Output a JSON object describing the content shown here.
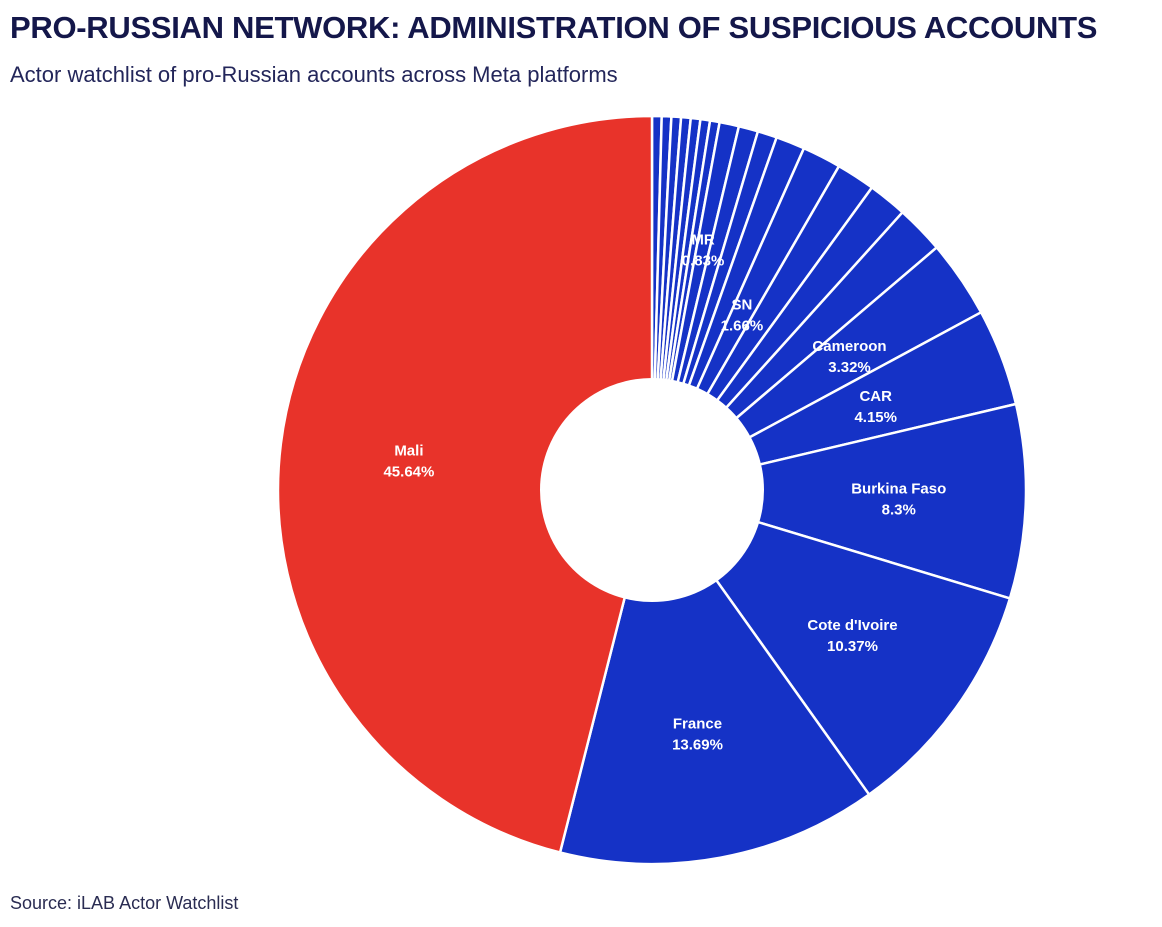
{
  "title": "PRO-RUSSIAN NETWORK: ADMINISTRATION OF SUSPICIOUS ACCOUNTS",
  "subtitle": "Actor watchlist of pro-Russian accounts across Meta platforms",
  "source": "Source: iLAB Actor Watchlist",
  "colors": {
    "highlight": "#e8332a",
    "base": "#1532c6",
    "separator": "#ffffff"
  },
  "chart_data": {
    "type": "pie",
    "donut": true,
    "start_direction": "12 o'clock, clockwise",
    "unit": "%",
    "slices": [
      {
        "label": "",
        "value": 0.41,
        "color": "#1532c6"
      },
      {
        "label": "",
        "value": 0.41,
        "color": "#1532c6"
      },
      {
        "label": "",
        "value": 0.41,
        "color": "#1532c6"
      },
      {
        "label": "",
        "value": 0.41,
        "color": "#1532c6"
      },
      {
        "label": "",
        "value": 0.41,
        "color": "#1532c6"
      },
      {
        "label": "",
        "value": 0.41,
        "color": "#1532c6"
      },
      {
        "label": "",
        "value": 0.41,
        "color": "#1532c6"
      },
      {
        "label": "MR",
        "value": 0.83,
        "display": "0.83%",
        "color": "#1532c6"
      },
      {
        "label": "",
        "value": 0.83,
        "color": "#1532c6"
      },
      {
        "label": "",
        "value": 0.83,
        "color": "#1532c6"
      },
      {
        "label": "",
        "value": 1.24,
        "color": "#1532c6"
      },
      {
        "label": "SN",
        "value": 1.66,
        "display": "1.66%",
        "color": "#1532c6"
      },
      {
        "label": "",
        "value": 1.66,
        "color": "#1532c6"
      },
      {
        "label": "",
        "value": 1.66,
        "color": "#1532c6"
      },
      {
        "label": "",
        "value": 2.07,
        "color": "#1532c6"
      },
      {
        "label": "Cameroon",
        "value": 3.32,
        "display": "3.32%",
        "color": "#1532c6"
      },
      {
        "label": "CAR",
        "value": 4.15,
        "display": "4.15%",
        "color": "#1532c6"
      },
      {
        "label": "Burkina Faso",
        "value": 8.3,
        "display": "8.3%",
        "color": "#1532c6"
      },
      {
        "label": "Cote d'Ivoire",
        "value": 10.37,
        "display": "10.37%",
        "color": "#1532c6"
      },
      {
        "label": "France",
        "value": 13.69,
        "display": "13.69%",
        "color": "#1532c6"
      },
      {
        "label": "Mali",
        "value": 45.64,
        "display": "45.64%",
        "color": "#e8332a"
      }
    ]
  }
}
